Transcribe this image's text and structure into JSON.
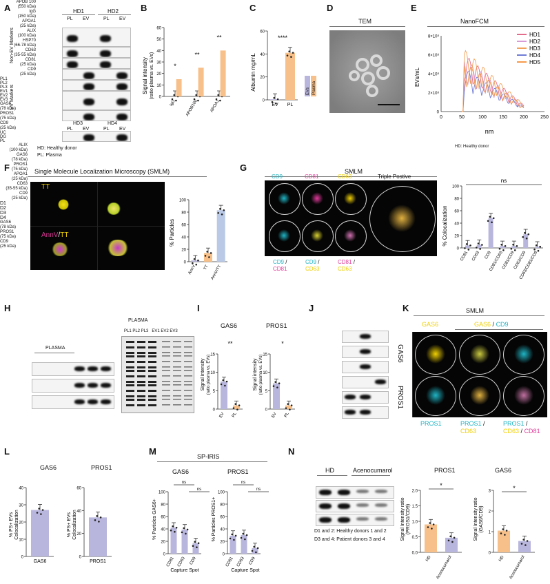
{
  "panels": {
    "A": {
      "letter": "A",
      "donors_top": [
        "HD1",
        "HD2"
      ],
      "donors_bottom": [
        "HD3",
        "HD4"
      ],
      "lanes": [
        "PL",
        "EV",
        "PL",
        "EV"
      ],
      "group_non_ev": "Non-EV Markers",
      "group_ev": "EV Markers",
      "markers": [
        {
          "name": "APOB 100",
          "kda": "(550 kDa)"
        },
        {
          "name": "IgG",
          "kda": "(150 kDa)"
        },
        {
          "name": "APOA1",
          "kda": "(25 kDa)"
        },
        {
          "name": "ALIX",
          "kda": "(100 kDa)"
        },
        {
          "name": "HSP70",
          "kda": "(66-78 kDa)"
        },
        {
          "name": "CD63",
          "kda": "(35-55 kDa)"
        },
        {
          "name": "CD81",
          "kda": "(25 kDa)"
        },
        {
          "name": "CD9",
          "kda": "(25 kDa)"
        }
      ],
      "legend1": "HD: Healthy donor",
      "legend2": "PL: Plasma"
    },
    "B": {
      "letter": "B",
      "ylabel1": "Signal intensity",
      "ylabel2": "(ratio plasma vs. EVs)",
      "yticks": [
        "0",
        "10",
        "20",
        "30",
        "40",
        "50",
        "60"
      ],
      "categories": [
        "IgG",
        "APOB100",
        "APOA1"
      ],
      "sig": [
        "*",
        "**",
        "**"
      ]
    },
    "C": {
      "letter": "C",
      "ylabel": "Albumin mg/mL",
      "yticks": [
        "0",
        "20",
        "40",
        "60"
      ],
      "categories": [
        "EV",
        "PL"
      ],
      "sig": "****",
      "legend": [
        "EVs",
        "Plasma"
      ]
    },
    "D": {
      "letter": "D",
      "title": "TEM"
    },
    "E": {
      "letter": "E",
      "title": "NanoFCM",
      "ylabel": "EVs/mL",
      "xlabel": "nm",
      "yticks": [
        "0",
        "2×10⁸",
        "4×10⁸",
        "6×10⁸",
        "8×10⁸"
      ],
      "xticks": [
        "0",
        "50",
        "100",
        "150",
        "200",
        "250"
      ],
      "legend": [
        "HD1",
        "HD2",
        "HD3",
        "HD4",
        "HD5"
      ],
      "note": "HD: Healthy donor"
    },
    "F": {
      "letter": "F",
      "title": "Single Molecule Localization Microscopy (SMLM)",
      "label_tt": "TT",
      "label_annv": "AnnV",
      "label_sep": "/",
      "label_tt2": "TT",
      "ylabel": "% Particles",
      "yticks": [
        "0",
        "20",
        "40",
        "60",
        "80",
        "100"
      ],
      "categories": [
        "AnnV",
        "TT",
        "AnnV/TT"
      ]
    },
    "G": {
      "letter": "G",
      "title": "SMLM",
      "top_labels": [
        "CD9",
        "CD81",
        "CD63",
        "Triple Postive"
      ],
      "bottom_labels": [
        [
          "CD9",
          "/",
          "CD81"
        ],
        [
          "CD9",
          "/",
          "CD63"
        ],
        [
          "CD81",
          "/",
          "CD63"
        ]
      ],
      "ylabel": "% Colocalization",
      "yticks": [
        "0",
        "20",
        "40",
        "60",
        "80",
        "100"
      ],
      "categories": [
        "CD81",
        "CD63",
        "CD9",
        "CD81/CD63",
        "CD81/CD9",
        "CD63/CD9",
        "CD63/CD81/CD9"
      ],
      "sig": "ns"
    },
    "H": {
      "letter": "H",
      "plasma": "PLASMA",
      "lanes": [
        "PL1",
        "PL2",
        "PL3",
        "EV1",
        "EV2",
        "EV3"
      ],
      "markers": [
        {
          "name": "GAS6",
          "kda": "(78 kDa)"
        },
        {
          "name": "PROS1",
          "kda": "(75 kDa)"
        },
        {
          "name": "CD9",
          "kda": "(25 kDa)"
        }
      ],
      "gel_title": "PLASMA",
      "gel_lanes": "PL1 PL2 PL3   EV1 EV2 EV3"
    },
    "I": {
      "letter": "I",
      "titles": [
        "GAS6",
        "PROS1"
      ],
      "ylabel1": "Signal intensity",
      "ylabel2": "(ratio plasma vs. EVs)",
      "categories": [
        "EV",
        "PL"
      ],
      "yticks1": [
        "0",
        "5",
        "10",
        "15"
      ],
      "yticks2": [
        "0",
        "5",
        "10",
        "15"
      ],
      "sig": [
        "**",
        "*"
      ]
    },
    "J": {
      "letter": "J",
      "lanes": [
        "UC",
        "DG",
        "PL"
      ],
      "markers": [
        {
          "name": "ALIX",
          "kda": "(100 kDa)"
        },
        {
          "name": "GAS6",
          "kda": "(78 kDa)"
        },
        {
          "name": "PROS1",
          "kda": "(75 kDa)"
        },
        {
          "name": "APOA1",
          "kda": "(25 kDa)"
        },
        {
          "name": "CD63",
          "kda": "(35-55 kDa)"
        },
        {
          "name": "CD9",
          "kda": "(25 kDa)"
        }
      ]
    },
    "K": {
      "letter": "K",
      "title": "SMLM",
      "row_labels": [
        "GAS6",
        "PROS1"
      ],
      "top_labels": [
        [
          "GAS6"
        ],
        [
          "GAS6",
          "/",
          "CD9"
        ]
      ],
      "bottom_labels": [
        [
          "PROS1"
        ],
        [
          "PROS1",
          "/",
          "CD63"
        ],
        [
          "PROS1",
          "/",
          "CD63",
          "/",
          "CD81"
        ]
      ]
    },
    "L": {
      "letter": "L",
      "titles": [
        "GAS6",
        "PROS1"
      ],
      "ylabel1": "% PS+ EVs",
      "ylabel2": "Colocalization",
      "yticks": [
        "0",
        "10",
        "20",
        "30",
        "40"
      ],
      "yticks2": [
        "0",
        "20",
        "40",
        "60"
      ],
      "categories": [
        "GAS6",
        "PROS1"
      ]
    },
    "M": {
      "letter": "M",
      "title": "SP-IRIS",
      "titles": [
        "GAS6",
        "PROS1"
      ],
      "ylabels": [
        "% Particles GAS6+",
        "% Particles PROS1+"
      ],
      "yticks": [
        "0",
        "20",
        "40",
        "60",
        "80",
        "100"
      ],
      "categories": [
        "CD81",
        "CD63",
        "CD9"
      ],
      "xlabel": "Capture Spot",
      "sig": "ns"
    },
    "N": {
      "letter": "N",
      "hd": "HD",
      "aceno": "Acenocumarol",
      "lanes": [
        "D1",
        "D2",
        "D3",
        "D4"
      ],
      "markers": [
        {
          "name": "GAS6",
          "kda": "(78 kDa)"
        },
        {
          "name": "PROS1",
          "kda": "(75 kDa)"
        },
        {
          "name": "CD9",
          "kda": "(25 kDa)"
        }
      ],
      "note1": "D1 and 2: Healthy donors 1 and 2",
      "note2": "D3 and 4: Patient donors 3 and 4",
      "titles": [
        "PROS1",
        "GAS6"
      ],
      "ylabel1": "Signal Intensity ratio",
      "ylabel_pros": "(PROS1/CD9)",
      "ylabel_gas": "(GAS6/CD9)",
      "yticks1": [
        "0.0",
        "0.5",
        "1.0",
        "1.5",
        "2.0"
      ],
      "yticks2": [
        "0",
        "1",
        "2",
        "3"
      ],
      "categories": [
        "HD",
        "Acenocumarol"
      ],
      "sig": "*"
    }
  },
  "colors": {
    "lavender": "#b9b6dd",
    "peach": "#f7c08a",
    "magenta": "#e0399a",
    "cyan": "#1fb4c4",
    "yellow": "#f0d000"
  },
  "chart_data": [
    {
      "panel": "B",
      "type": "bar",
      "categories": [
        "IgG",
        "APOB100",
        "APOA1"
      ],
      "values": [
        15,
        25,
        40
      ],
      "ylim": [
        0,
        60
      ],
      "ylabel": "Signal intensity (ratio plasma vs. EVs)"
    },
    {
      "panel": "C",
      "type": "bar",
      "categories": [
        "EV",
        "PL"
      ],
      "values": [
        0.5,
        41
      ],
      "ylim": [
        0,
        60
      ],
      "ylabel": "Albumin mg/mL"
    },
    {
      "panel": "E",
      "type": "line",
      "xlabel": "nm",
      "ylabel": "EVs/mL",
      "xlim": [
        0,
        250
      ],
      "ylim": [
        0,
        800000000
      ],
      "series": [
        {
          "name": "HD1",
          "peak": 600000000
        },
        {
          "name": "HD2",
          "peak": 550000000
        },
        {
          "name": "HD3",
          "peak": 650000000
        },
        {
          "name": "HD4",
          "peak": 450000000
        },
        {
          "name": "HD5",
          "peak": 520000000
        }
      ]
    },
    {
      "panel": "F",
      "type": "bar",
      "categories": [
        "AnnV",
        "TT",
        "AnnV/TT"
      ],
      "values": [
        2,
        14,
        83
      ],
      "ylim": [
        0,
        100
      ],
      "ylabel": "% Particles"
    },
    {
      "panel": "G",
      "type": "bar",
      "categories": [
        "CD81",
        "CD63",
        "CD9",
        "CD81/CD63",
        "CD81/CD9",
        "CD63/CD9",
        "CD63/CD81/CD9"
      ],
      "values": [
        4,
        5,
        48,
        3,
        3,
        22,
        2
      ],
      "ylim": [
        0,
        100
      ],
      "ylabel": "% Colocalization"
    },
    {
      "panel": "I-GAS6",
      "type": "bar",
      "categories": [
        "EV",
        "PL"
      ],
      "values": [
        7.5,
        1
      ],
      "ylim": [
        0,
        15
      ]
    },
    {
      "panel": "I-PROS1",
      "type": "bar",
      "categories": [
        "EV",
        "PL"
      ],
      "values": [
        7,
        1
      ],
      "ylim": [
        0,
        15
      ]
    },
    {
      "panel": "L-GAS6",
      "type": "bar",
      "categories": [
        "GAS6"
      ],
      "values": [
        27
      ],
      "ylim": [
        0,
        40
      ],
      "ylabel": "% PS+ EVs Colocalization"
    },
    {
      "panel": "L-PROS1",
      "type": "bar",
      "categories": [
        "PROS1"
      ],
      "values": [
        34
      ],
      "ylim": [
        0,
        60
      ],
      "ylabel": "% PS+ EVs Colocalization"
    },
    {
      "panel": "M-GAS6",
      "type": "bar",
      "categories": [
        "CD81",
        "CD63",
        "CD9"
      ],
      "values": [
        42,
        39,
        17
      ],
      "ylim": [
        0,
        100
      ]
    },
    {
      "panel": "M-PROS1",
      "type": "bar",
      "categories": [
        "CD81",
        "CD63",
        "CD9"
      ],
      "values": [
        29,
        30,
        9
      ],
      "ylim": [
        0,
        100
      ]
    },
    {
      "panel": "N-PROS1",
      "type": "bar",
      "categories": [
        "HD",
        "Acenocumarol"
      ],
      "values": [
        0.9,
        0.47
      ],
      "ylim": [
        0,
        2
      ]
    },
    {
      "panel": "N-GAS6",
      "type": "bar",
      "categories": [
        "HD",
        "Acenocumarol"
      ],
      "values": [
        1.05,
        0.55
      ],
      "ylim": [
        0,
        3
      ]
    }
  ]
}
